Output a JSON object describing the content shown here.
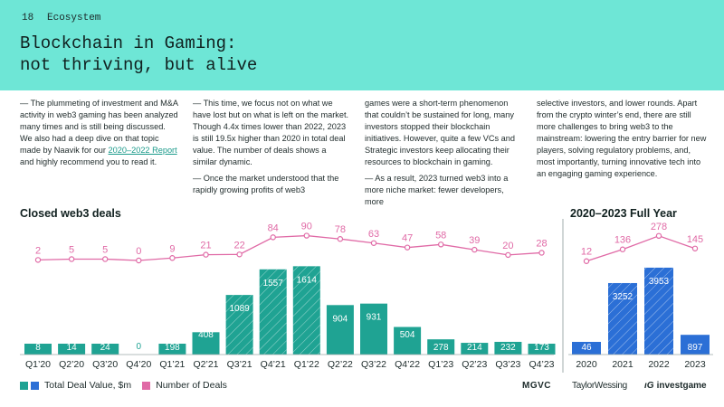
{
  "header": {
    "page_number": "18",
    "section": "Ecosystem",
    "title_line1": "Blockchain in Gaming:",
    "title_line2": "not thriving, but alive"
  },
  "text_columns": {
    "col1": {
      "p1_before_link": "— The plummeting of investment and M&A activity in web3 gaming has been analyzed many times and is still being discussed. We also had a deep dive on that topic made by Naavik for our ",
      "link": "2020–2022 Report",
      "p1_after_link": " and highly recommend you to read it."
    },
    "col2": {
      "p1": "— This time, we focus not on what we have lost but on what is left on the market. Though 4.4x times lower than 2022, 2023 is still 19.5x higher than 2020 in total deal value. The number of deals shows a similar dynamic.",
      "p2": "— Once the market understood that the rapidly growing profits of web3"
    },
    "col3": {
      "p1": "games were a short-term phenomenon that couldn’t be sustained for long, many investors stopped their blockchain initiatives. However, quite a few VCs and Strategic investors keep allocating their resources to blockchain in gaming.",
      "p2": "— As a result, 2023 turned web3 into a more niche market: fewer developers, more"
    },
    "col4": {
      "p1": "selective investors, and lower rounds. Apart from the crypto winter’s end, there are still more challenges to bring web3 to the mainstream: lowering the entry barrier for new players, solving regulatory problems, and, most importantly, turning innovative tech into an engaging gaming experience."
    }
  },
  "chart_data": [
    {
      "type": "bar",
      "title": "Closed web3 deals",
      "categories": [
        "Q1’20",
        "Q2’20",
        "Q3’20",
        "Q4’20",
        "Q1’21",
        "Q2’21",
        "Q3’21",
        "Q4’21",
        "Q1’22",
        "Q2’22",
        "Q3’22",
        "Q4’22",
        "Q1’23",
        "Q2’23",
        "Q3’23",
        "Q4’23"
      ],
      "series": [
        {
          "name": "Total Deal Value, $m",
          "kind": "bar",
          "values": [
            8,
            14,
            24,
            0,
            198,
            408,
            1089,
            1557,
            1614,
            904,
            931,
            504,
            278,
            214,
            232,
            173
          ]
        },
        {
          "name": "Number of Deals",
          "kind": "line",
          "values": [
            2,
            5,
            5,
            0,
            9,
            21,
            22,
            84,
            90,
            78,
            63,
            47,
            58,
            39,
            20,
            28
          ]
        }
      ],
      "bar_color": "#1fa393",
      "line_color": "#e06aa6"
    },
    {
      "type": "bar",
      "title": "2020–2023 Full Year",
      "categories": [
        "2020",
        "2021",
        "2022",
        "2023"
      ],
      "series": [
        {
          "name": "Total Deal Value, $m",
          "kind": "bar",
          "values": [
            46,
            3252,
            3953,
            897
          ]
        },
        {
          "name": "Number of Deals",
          "kind": "line",
          "values": [
            12,
            136,
            278,
            145
          ]
        }
      ],
      "bar_color": "#2b6fd6",
      "line_color": "#e06aa6"
    }
  ],
  "legend": {
    "bars_label": "Total Deal Value, $m",
    "line_label": "Number of Deals",
    "teal": "#1fa393",
    "blue": "#2b6fd6",
    "pink": "#e06aa6"
  },
  "logos": {
    "logo1": "MGVC",
    "logo2": "TaylorWessing",
    "logo3": "investgame"
  }
}
